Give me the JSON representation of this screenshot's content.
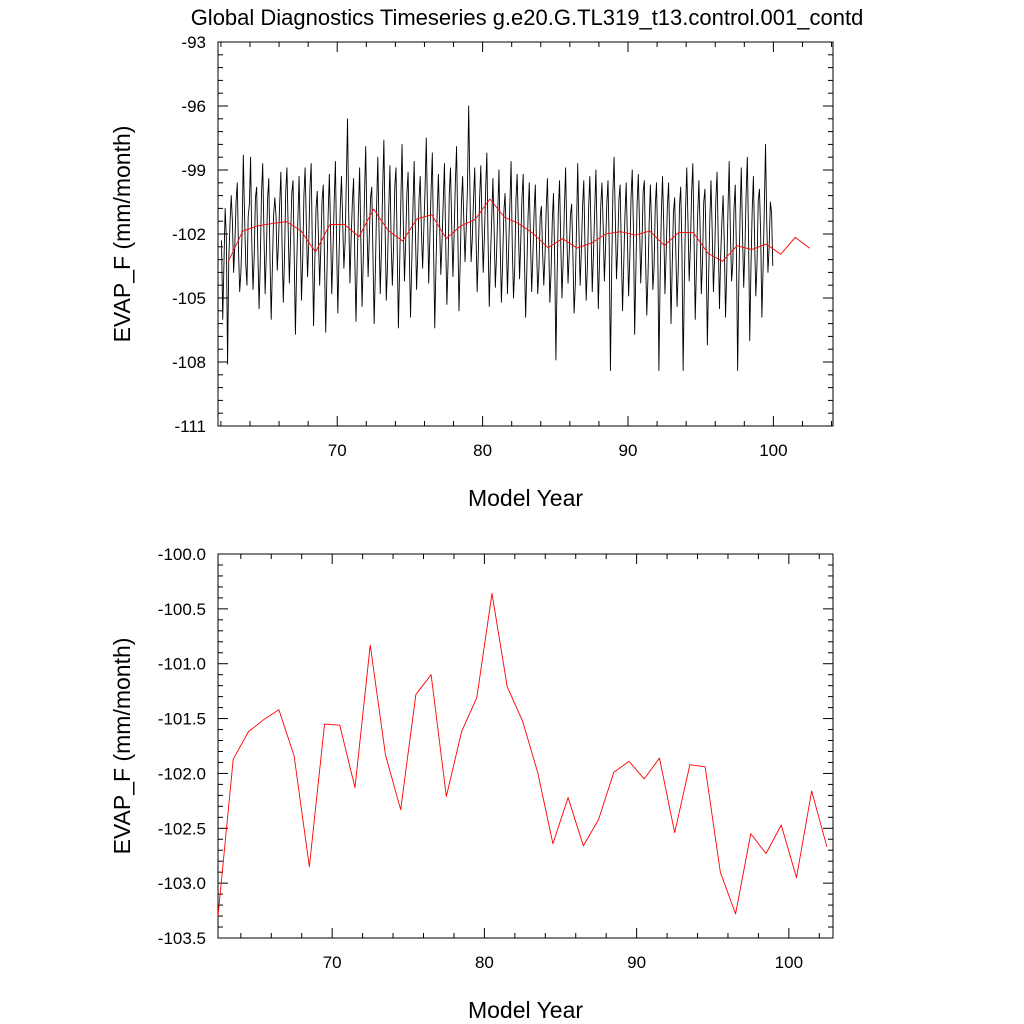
{
  "title": "Global Diagnostics Timeseries g.e20.G.TL319_t13.control.001_contd",
  "colors": {
    "monthly_line": "#000000",
    "annual_line": "#ff0000",
    "axes": "#000000"
  },
  "chart_data": [
    {
      "type": "line",
      "xlabel": "Model Year",
      "ylabel": "EVAP_F (mm/month)",
      "xlim": [
        61.8,
        104.1
      ],
      "ylim": [
        -111,
        -93
      ],
      "xticks": [
        70,
        80,
        90,
        100
      ],
      "xtick_labels": [
        "70",
        "80",
        "90",
        "100"
      ],
      "yticks": [
        -111,
        -108,
        -105,
        -102,
        -99,
        -96,
        -93
      ],
      "ytick_labels": [
        "-111",
        "-108",
        "-105",
        "-102",
        "-99",
        "-96",
        "-93"
      ],
      "series": [
        {
          "color": "#000000",
          "x_start": 62.0417,
          "x_step": 0.0833333,
          "values": [
            -102.3,
            -106.0,
            -103.4,
            -100.8,
            -102.2,
            -108.1,
            -103.2,
            -101.5,
            -100.2,
            -101.4,
            -103.8,
            -102.5,
            -100.5,
            -99.6,
            -102.7,
            -104.7,
            -103.8,
            -101.9,
            -98.3,
            -101.1,
            -103.4,
            -104.4,
            -101.2,
            -100.6,
            -98.4,
            -102.4,
            -104.6,
            -103.0,
            -100.3,
            -99.8,
            -102.8,
            -105.5,
            -103.3,
            -100.1,
            -98.7,
            -101.9,
            -104.8,
            -102.9,
            -100.4,
            -99.4,
            -103.1,
            -106.0,
            -103.5,
            -101.1,
            -100.3,
            -101.2,
            -103.7,
            -102.4,
            -100.6,
            -99.1,
            -102.6,
            -105.2,
            -103.1,
            -100.0,
            -98.9,
            -101.7,
            -104.3,
            -102.2,
            -100.1,
            -99.5,
            -103.0,
            -106.7,
            -103.6,
            -101.4,
            -99.3,
            -102.0,
            -105.1,
            -103.2,
            -100.2,
            -98.9,
            -101.5,
            -104.0,
            -102.4,
            -99.8,
            -98.7,
            -102.8,
            -106.3,
            -103.3,
            -100.8,
            -100.0,
            -102.2,
            -104.4,
            -102.6,
            -100.4,
            -99.7,
            -103.3,
            -106.6,
            -103.9,
            -101.1,
            -99.2,
            -101.8,
            -104.8,
            -102.8,
            -100.5,
            -98.6,
            -102.5,
            -105.7,
            -103.0,
            -100.8,
            -99.3,
            -101.4,
            -103.6,
            -102.4,
            -99.6,
            -96.6,
            -101.1,
            -104.3,
            -102.2,
            -100.5,
            -99.4,
            -103.1,
            -106.1,
            -103.4,
            -100.9,
            -98.9,
            -102.3,
            -105.4,
            -103.2,
            -100.2,
            -97.9,
            -101.5,
            -104.0,
            -102.1,
            -100.3,
            -99.8,
            -103.0,
            -106.2,
            -103.7,
            -100.7,
            -98.4,
            -101.8,
            -104.8,
            -102.7,
            -99.9,
            -97.6,
            -101.6,
            -105.1,
            -103.5,
            -100.9,
            -98.8,
            -102.4,
            -104.4,
            -102.6,
            -99.8,
            -98.9,
            -102.6,
            -106.4,
            -103.6,
            -100.5,
            -97.8,
            -101.4,
            -104.2,
            -102.4,
            -100.1,
            -99.1,
            -102.8,
            -105.9,
            -103.4,
            -100.8,
            -98.6,
            -101.8,
            -104.6,
            -102.9,
            -100.4,
            -99.3,
            -101.9,
            -103.6,
            -101.7,
            -99.9,
            -97.5,
            -100.9,
            -104.3,
            -102.1,
            -99.9,
            -98.2,
            -102.6,
            -106.4,
            -103.5,
            -101.0,
            -99.2,
            -101.5,
            -103.9,
            -102.4,
            -100.5,
            -98.7,
            -102.3,
            -105.3,
            -103.3,
            -100.1,
            -98.9,
            -101.6,
            -104.0,
            -102.0,
            -99.6,
            -97.9,
            -101.8,
            -105.6,
            -103.3,
            -100.6,
            -99.3,
            -101.4,
            -103.3,
            -101.7,
            -99.8,
            -96.0,
            -99.8,
            -103.3,
            -102.2,
            -100.4,
            -98.9,
            -101.9,
            -104.7,
            -102.8,
            -100.4,
            -98.8,
            -101.5,
            -103.8,
            -102.1,
            -99.9,
            -98.2,
            -102.3,
            -105.4,
            -103.1,
            -101.3,
            -99.4,
            -101.8,
            -104.5,
            -103.0,
            -100.9,
            -99.0,
            -102.5,
            -105.2,
            -103.4,
            -101.0,
            -100.1,
            -102.1,
            -104.8,
            -102.7,
            -100.6,
            -98.6,
            -102.6,
            -105.0,
            -103.6,
            -100.4,
            -99.2,
            -101.6,
            -104.1,
            -102.3,
            -100.3,
            -99.2,
            -103.1,
            -105.9,
            -103.7,
            -101.2,
            -99.6,
            -102.3,
            -104.7,
            -103.0,
            -101.0,
            -99.7,
            -102.6,
            -104.8,
            -103.6,
            -101.2,
            -100.7,
            -102.8,
            -104.4,
            -103.0,
            -100.8,
            -99.4,
            -102.3,
            -105.2,
            -103.8,
            -101.4,
            -100.1,
            -103.2,
            -107.9,
            -104.0,
            -100.9,
            -99.5,
            -102.4,
            -105.0,
            -103.2,
            -100.8,
            -98.9,
            -102.0,
            -104.3,
            -102.9,
            -101.1,
            -100.6,
            -102.9,
            -105.7,
            -104.4,
            -101.7,
            -98.7,
            -101.8,
            -104.4,
            -102.8,
            -100.7,
            -99.5,
            -102.6,
            -105.1,
            -103.5,
            -100.8,
            -99.3,
            -101.9,
            -104.7,
            -102.9,
            -100.9,
            -99.0,
            -102.1,
            -105.5,
            -103.2,
            -100.7,
            -99.6,
            -101.6,
            -104.2,
            -102.6,
            -100.6,
            -99.5,
            -102.6,
            -108.4,
            -103.8,
            -100.1,
            -98.4,
            -101.2,
            -104.1,
            -102.6,
            -100.4,
            -99.7,
            -102.8,
            -105.6,
            -103.4,
            -101.1,
            -99.6,
            -102.2,
            -104.9,
            -103.1,
            -100.3,
            -99.0,
            -101.8,
            -106.7,
            -103.7,
            -100.6,
            -99.2,
            -101.5,
            -104.3,
            -102.6,
            -100.0,
            -99.5,
            -103.1,
            -105.8,
            -104.0,
            -101.4,
            -99.7,
            -101.8,
            -104.6,
            -103.6,
            -100.7,
            -99.6,
            -102.3,
            -108.4,
            -104.1,
            -101.1,
            -99.3,
            -101.6,
            -104.8,
            -102.9,
            -100.7,
            -99.6,
            -102.4,
            -106.2,
            -103.5,
            -101.0,
            -100.3,
            -102.9,
            -105.4,
            -103.6,
            -100.7,
            -99.8,
            -102.7,
            -108.4,
            -104.3,
            -100.9,
            -98.9,
            -101.4,
            -104.2,
            -102.6,
            -100.1,
            -98.7,
            -102.1,
            -106.0,
            -103.5,
            -101.1,
            -99.5,
            -101.7,
            -104.8,
            -103.3,
            -100.5,
            -99.9,
            -102.8,
            -107.2,
            -104.2,
            -101.4,
            -99.5,
            -101.9,
            -104.7,
            -103.1,
            -100.4,
            -99.1,
            -102.3,
            -105.5,
            -103.0,
            -101.4,
            -100.2,
            -102.5,
            -105.9,
            -103.8,
            -100.9,
            -98.6,
            -101.9,
            -104.2,
            -103.4,
            -100.8,
            -99.7,
            -102.9,
            -108.4,
            -104.2,
            -101.1,
            -98.9,
            -102.0,
            -104.5,
            -102.7,
            -100.1,
            -98.4,
            -102.2,
            -107.0,
            -103.5,
            -100.9,
            -99.3,
            -102.3,
            -104.9,
            -103.4,
            -100.4,
            -99.9,
            -102.0,
            -105.9,
            -103.6,
            -100.8,
            -97.8,
            -101.4,
            -103.8,
            -102.6,
            -100.5,
            -101.0,
            -103.5
          ]
        },
        {
          "color": "#ff0000",
          "x": [
            62.5,
            63.5,
            64.5,
            65.5,
            66.5,
            67.5,
            68.5,
            69.5,
            70.5,
            71.5,
            72.5,
            73.5,
            74.5,
            75.5,
            76.5,
            77.5,
            78.5,
            79.5,
            80.5,
            81.5,
            82.5,
            83.5,
            84.5,
            85.5,
            86.5,
            87.5,
            88.5,
            89.5,
            90.5,
            91.5,
            92.5,
            93.5,
            94.5,
            95.5,
            96.5,
            97.5,
            98.5,
            99.5,
            100.5,
            101.5,
            102.5
          ],
          "values": [
            -103.3,
            -101.87,
            -101.62,
            -101.51,
            -101.42,
            -101.84,
            -102.85,
            -101.55,
            -101.56,
            -102.13,
            -100.83,
            -101.83,
            -102.33,
            -101.28,
            -101.1,
            -102.21,
            -101.62,
            -101.31,
            -100.36,
            -101.21,
            -101.52,
            -101.99,
            -102.64,
            -102.22,
            -102.66,
            -102.42,
            -101.99,
            -101.89,
            -102.05,
            -101.86,
            -102.54,
            -101.92,
            -101.94,
            -102.9,
            -103.28,
            -102.55,
            -102.73,
            -102.47,
            -102.95,
            -102.16,
            -102.67
          ]
        }
      ]
    },
    {
      "type": "line",
      "xlabel": "Model Year",
      "ylabel": "EVAP_F (mm/month)",
      "xlim": [
        62.5,
        102.9
      ],
      "ylim": [
        -103.5,
        -100.0
      ],
      "xticks": [
        70,
        80,
        90,
        100
      ],
      "xtick_labels": [
        "70",
        "80",
        "90",
        "100"
      ],
      "yticks": [
        -103.5,
        -103.0,
        -102.5,
        -102.0,
        -101.5,
        -101.0,
        -100.5,
        -100.0
      ],
      "ytick_labels": [
        "-103.5",
        "-103.0",
        "-102.5",
        "-102.0",
        "-101.5",
        "-101.0",
        "-100.5",
        "-100.0"
      ],
      "series": [
        {
          "color": "#ff0000",
          "x": [
            62.5,
            63.5,
            64.5,
            65.5,
            66.5,
            67.5,
            68.5,
            69.5,
            70.5,
            71.5,
            72.5,
            73.5,
            74.5,
            75.5,
            76.5,
            77.5,
            78.5,
            79.5,
            80.5,
            81.5,
            82.5,
            83.5,
            84.5,
            85.5,
            86.5,
            87.5,
            88.5,
            89.5,
            90.5,
            91.5,
            92.5,
            93.5,
            94.5,
            95.5,
            96.5,
            97.5,
            98.5,
            99.5,
            100.5,
            101.5,
            102.5
          ],
          "values": [
            -103.3,
            -101.87,
            -101.62,
            -101.51,
            -101.42,
            -101.84,
            -102.85,
            -101.55,
            -101.56,
            -102.13,
            -100.83,
            -101.83,
            -102.33,
            -101.28,
            -101.1,
            -102.21,
            -101.62,
            -101.31,
            -100.36,
            -101.21,
            -101.52,
            -101.99,
            -102.64,
            -102.22,
            -102.66,
            -102.42,
            -101.99,
            -101.89,
            -102.05,
            -101.86,
            -102.54,
            -101.92,
            -101.94,
            -102.9,
            -103.28,
            -102.55,
            -102.73,
            -102.47,
            -102.95,
            -102.16,
            -102.67
          ]
        }
      ]
    }
  ]
}
